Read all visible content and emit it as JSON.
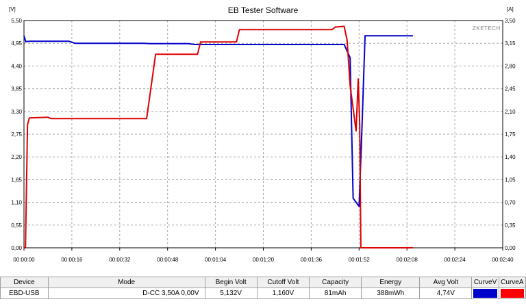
{
  "chart_data": {
    "type": "line",
    "title": "EB Tester Software",
    "watermark": "ZKETECH",
    "left_axis": {
      "unit_label": "[V]",
      "ticks": [
        "0,00",
        "0,55",
        "1,10",
        "1,65",
        "2,20",
        "2,75",
        "3,30",
        "3,85",
        "4,40",
        "4,95",
        "5,50"
      ],
      "range": [
        0,
        5.5
      ]
    },
    "right_axis": {
      "unit_label": "[A]",
      "ticks": [
        "0,00",
        "0,35",
        "0,70",
        "1,05",
        "1,40",
        "1,75",
        "2,10",
        "2,45",
        "2,80",
        "3,15",
        "3,50"
      ],
      "range": [
        0,
        3.5
      ]
    },
    "x_axis": {
      "ticks": [
        "00:00:00",
        "00:00:16",
        "00:00:32",
        "00:00:48",
        "00:01:04",
        "00:01:20",
        "00:01:36",
        "00:01:52",
        "00:02:08",
        "00:02:24",
        "00:02:40"
      ],
      "range_seconds": [
        0,
        160
      ]
    },
    "grid": true,
    "series": [
      {
        "name": "CurveV",
        "color": "#0000cc",
        "axis": "left",
        "points": [
          [
            0,
            5.13
          ],
          [
            0.6,
            4.99
          ],
          [
            2,
            5.0
          ],
          [
            15,
            5.0
          ],
          [
            17,
            4.95
          ],
          [
            40,
            4.95
          ],
          [
            42,
            4.94
          ],
          [
            55,
            4.94
          ],
          [
            57,
            4.92
          ],
          [
            107,
            4.92
          ],
          [
            109,
            4.6
          ],
          [
            110,
            1.2
          ],
          [
            112,
            1.0
          ],
          [
            113,
            3.0
          ],
          [
            114,
            5.13
          ],
          [
            130,
            5.13
          ]
        ]
      },
      {
        "name": "CurveA",
        "color": "#dd0000",
        "axis": "right",
        "points": [
          [
            0,
            0.0
          ],
          [
            0.5,
            0.0
          ],
          [
            1.2,
            1.9
          ],
          [
            1.8,
            2.0
          ],
          [
            8,
            2.01
          ],
          [
            9,
            1.99
          ],
          [
            41,
            1.99
          ],
          [
            44,
            2.98
          ],
          [
            58,
            2.98
          ],
          [
            59,
            3.17
          ],
          [
            71,
            3.17
          ],
          [
            72,
            3.36
          ],
          [
            103,
            3.36
          ],
          [
            104,
            3.4
          ],
          [
            107,
            3.41
          ],
          [
            108,
            3.2
          ],
          [
            109,
            2.5
          ],
          [
            111,
            1.8
          ],
          [
            111.7,
            2.6
          ],
          [
            112.2,
            1.9
          ],
          [
            112.6,
            0.0
          ],
          [
            130,
            0.0
          ]
        ]
      }
    ]
  },
  "info_table": {
    "headers": [
      "Device",
      "Mode",
      "Begin Volt",
      "Cutoff Volt",
      "Capacity",
      "Energy",
      "Avg Volt",
      "CurveV",
      "CurveA"
    ],
    "values": {
      "device": "EBD-USB",
      "mode": "D-CC  3,50A  0,00V",
      "begin_volt": "5,132V",
      "cutoff_volt": "1,160V",
      "capacity": "81mAh",
      "energy": "388mWh",
      "avg_volt": "4,74V"
    },
    "curve_v_color": "#0000cc",
    "curve_a_color": "#ff0000"
  }
}
